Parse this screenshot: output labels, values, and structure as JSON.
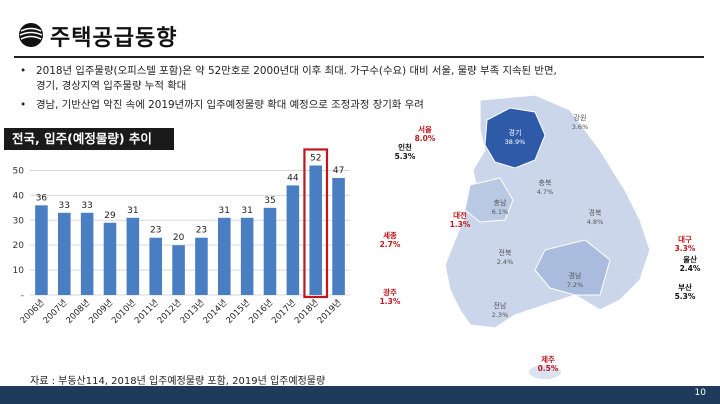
{
  "page": {
    "title": "주택공급동향",
    "page_number": "10"
  },
  "bullets": [
    {
      "marker": "•",
      "line1": "2018년 입주물량(오피스텔 포함)은 약 52만호로 2000년대 이후 최대. 가구수(수요) 대비 서울, 물량 부족     지속된 반면,",
      "line2": "경기, 경상지역 입주물량 누적 확대"
    },
    {
      "marker": "•",
      "line1": "경남, 기반산업 악진 속에 2019년까지 입주예정물량 확대 예정으로 조정과정 장기화 우려",
      "line2": ""
    }
  ],
  "chart_header": "전국, 입주(예정물량) 추이",
  "source": "자료 : 부동산114, 2018년 입주예정물량 포함, 2019년 입주예정물량",
  "chart_data": {
    "type": "bar",
    "title": "전국, 입주(예정물량) 추이",
    "categories": [
      "2006년",
      "2007년",
      "2008년",
      "2009년",
      "2010년",
      "2011년",
      "2012년",
      "2013년",
      "2014년",
      "2015년",
      "2016년",
      "2017년",
      "2018년",
      "2019년"
    ],
    "values": [
      36,
      33,
      33,
      29,
      31,
      23,
      20,
      23,
      31,
      31,
      35,
      44,
      52,
      47
    ],
    "ylim": [
      0,
      55
    ],
    "yticks": [
      "-",
      "10",
      "20",
      "30",
      "40",
      "50"
    ],
    "highlight_index": 12,
    "grid": true,
    "colors": {
      "bar": "#4a7ec2",
      "highlight_box": "#c0161d",
      "grid": "#d9d9d9"
    }
  },
  "map": {
    "regions": [
      {
        "name": "강원",
        "share": "3.6%"
      },
      {
        "name": "경기",
        "share": "38.9%"
      },
      {
        "name": "충북",
        "share": "4.7%"
      },
      {
        "name": "충남",
        "share": "6.1%"
      },
      {
        "name": "경북",
        "share": "4.8%"
      },
      {
        "name": "전북",
        "share": "2.4%"
      },
      {
        "name": "경남",
        "share": "7.2%"
      },
      {
        "name": "전남",
        "share": "2.3%"
      }
    ],
    "callouts": [
      {
        "name": "서울",
        "share": "8.0%",
        "color": "#c0161d"
      },
      {
        "name": "인천",
        "share": "5.3%",
        "color": "#111111"
      },
      {
        "name": "대전",
        "share": "1.3%",
        "color": "#c0161d"
      },
      {
        "name": "세종",
        "share": "2.7%",
        "color": "#c0161d"
      },
      {
        "name": "광주",
        "share": "1.3%",
        "color": "#c0161d"
      },
      {
        "name": "대구",
        "share": "3.3%",
        "color": "#c0161d"
      },
      {
        "name": "울산",
        "share": "2.4%",
        "color": "#111111"
      },
      {
        "name": "부산",
        "share": "5.3%",
        "color": "#111111"
      },
      {
        "name": "제주",
        "share": "0.5%",
        "color": "#c0161d"
      }
    ]
  }
}
